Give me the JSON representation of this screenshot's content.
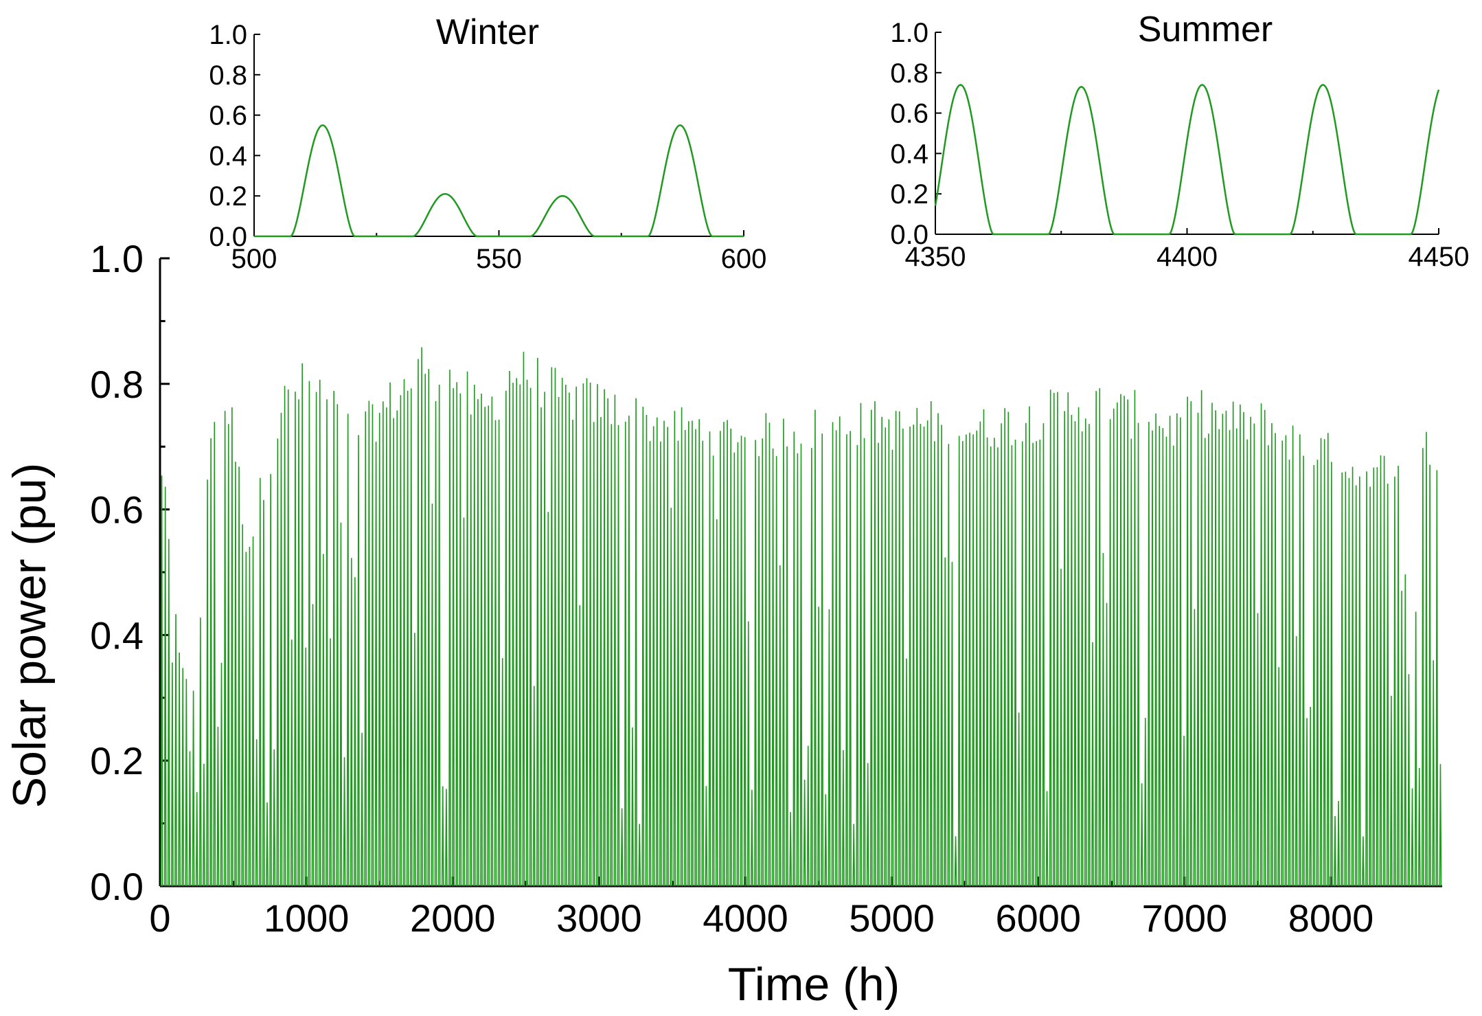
{
  "colors": {
    "series": "#1f9a1f",
    "axis": "#000000",
    "background": "#ffffff"
  },
  "chart_data": [
    {
      "id": "main",
      "type": "line",
      "title": "",
      "xlabel": "Time (h)",
      "ylabel": "Solar power (pu)",
      "xlim": [
        0,
        8760
      ],
      "ylim": [
        0,
        1.0
      ],
      "xticks": [
        0,
        1000,
        2000,
        3000,
        4000,
        5000,
        6000,
        7000,
        8000
      ],
      "xtick_labels": [
        "0",
        "1000",
        "2000",
        "3000",
        "4000",
        "5000",
        "6000",
        "7000",
        "8000"
      ],
      "yticks": [
        0,
        0.2,
        0.4,
        0.6,
        0.8,
        1.0
      ],
      "ytick_labels": [
        "0.0",
        "0.2",
        "0.4",
        "0.6",
        "0.8",
        "1.0"
      ],
      "grid": false,
      "legend": "none",
      "series": [
        {
          "description": "hourly solar output over one year; daily peak envelope sampled every 120 h (hour, daily peak pu)",
          "peak_envelope": [
            [
              0,
              0.72
            ],
            [
              120,
              0.4
            ],
            [
              240,
              0.3
            ],
            [
              360,
              0.79
            ],
            [
              480,
              0.78
            ],
            [
              600,
              0.55
            ],
            [
              720,
              0.68
            ],
            [
              840,
              0.79
            ],
            [
              960,
              0.82
            ],
            [
              1080,
              0.82
            ],
            [
              1200,
              0.78
            ],
            [
              1320,
              0.74
            ],
            [
              1440,
              0.76
            ],
            [
              1560,
              0.79
            ],
            [
              1680,
              0.82
            ],
            [
              1800,
              0.86
            ],
            [
              1920,
              0.83
            ],
            [
              2040,
              0.83
            ],
            [
              2160,
              0.78
            ],
            [
              2280,
              0.79
            ],
            [
              2400,
              0.84
            ],
            [
              2520,
              0.84
            ],
            [
              2640,
              0.82
            ],
            [
              2760,
              0.8
            ],
            [
              2880,
              0.8
            ],
            [
              3000,
              0.79
            ],
            [
              3120,
              0.78
            ],
            [
              3240,
              0.77
            ],
            [
              3360,
              0.76
            ],
            [
              3480,
              0.76
            ],
            [
              3600,
              0.75
            ],
            [
              3720,
              0.75
            ],
            [
              3840,
              0.74
            ],
            [
              3960,
              0.74
            ],
            [
              4080,
              0.74
            ],
            [
              4200,
              0.74
            ],
            [
              4320,
              0.74
            ],
            [
              4440,
              0.75
            ],
            [
              4560,
              0.75
            ],
            [
              4680,
              0.75
            ],
            [
              4800,
              0.76
            ],
            [
              4920,
              0.76
            ],
            [
              5040,
              0.75
            ],
            [
              5160,
              0.76
            ],
            [
              5280,
              0.76
            ],
            [
              5400,
              0.76
            ],
            [
              5520,
              0.75
            ],
            [
              5640,
              0.75
            ],
            [
              5760,
              0.76
            ],
            [
              5880,
              0.76
            ],
            [
              6000,
              0.77
            ],
            [
              6120,
              0.78
            ],
            [
              6240,
              0.79
            ],
            [
              6360,
              0.78
            ],
            [
              6480,
              0.8
            ],
            [
              6600,
              0.77
            ],
            [
              6720,
              0.78
            ],
            [
              6840,
              0.76
            ],
            [
              6960,
              0.75
            ],
            [
              7080,
              0.78
            ],
            [
              7200,
              0.77
            ],
            [
              7320,
              0.76
            ],
            [
              7440,
              0.76
            ],
            [
              7560,
              0.76
            ],
            [
              7680,
              0.74
            ],
            [
              7800,
              0.72
            ],
            [
              7920,
              0.72
            ],
            [
              8040,
              0.7
            ],
            [
              8160,
              0.68
            ],
            [
              8280,
              0.66
            ],
            [
              8400,
              0.7
            ],
            [
              8520,
              0.72
            ],
            [
              8640,
              0.74
            ],
            [
              8760,
              0.66
            ]
          ]
        }
      ]
    },
    {
      "id": "winter",
      "type": "line",
      "title": "Winter",
      "xlim": [
        500,
        600
      ],
      "ylim": [
        0,
        1.0
      ],
      "xticks": [
        500,
        550,
        600
      ],
      "xtick_labels": [
        "500",
        "550",
        "600"
      ],
      "yticks": [
        0,
        0.2,
        0.4,
        0.6,
        0.8,
        1.0
      ],
      "ytick_labels": [
        "0.0",
        "0.2",
        "0.4",
        "0.6",
        "0.8",
        "1.0"
      ],
      "series": [
        {
          "days": [
            {
              "peak_hour": 514,
              "peak": 0.55
            },
            {
              "peak_hour": 539,
              "peak": 0.21
            },
            {
              "peak_hour": 563,
              "peak": 0.2
            },
            {
              "peak_hour": 587,
              "peak": 0.55
            }
          ]
        }
      ]
    },
    {
      "id": "summer",
      "type": "line",
      "title": "Summer",
      "xlim": [
        4350,
        4450
      ],
      "ylim": [
        0,
        1.0
      ],
      "xticks": [
        4350,
        4400,
        4450
      ],
      "xtick_labels": [
        "4350",
        "4400",
        "4450"
      ],
      "yticks": [
        0,
        0.2,
        0.4,
        0.6,
        0.8,
        1.0
      ],
      "ytick_labels": [
        "0.0",
        "0.2",
        "0.4",
        "0.6",
        "0.8",
        "1.0"
      ],
      "series": [
        {
          "days": [
            {
              "peak_hour": 4355,
              "peak": 0.74
            },
            {
              "peak_hour": 4379,
              "peak": 0.73
            },
            {
              "peak_hour": 4403,
              "peak": 0.74
            },
            {
              "peak_hour": 4427,
              "peak": 0.74
            },
            {
              "peak_hour": 4451,
              "peak": 0.75
            }
          ]
        }
      ]
    }
  ]
}
